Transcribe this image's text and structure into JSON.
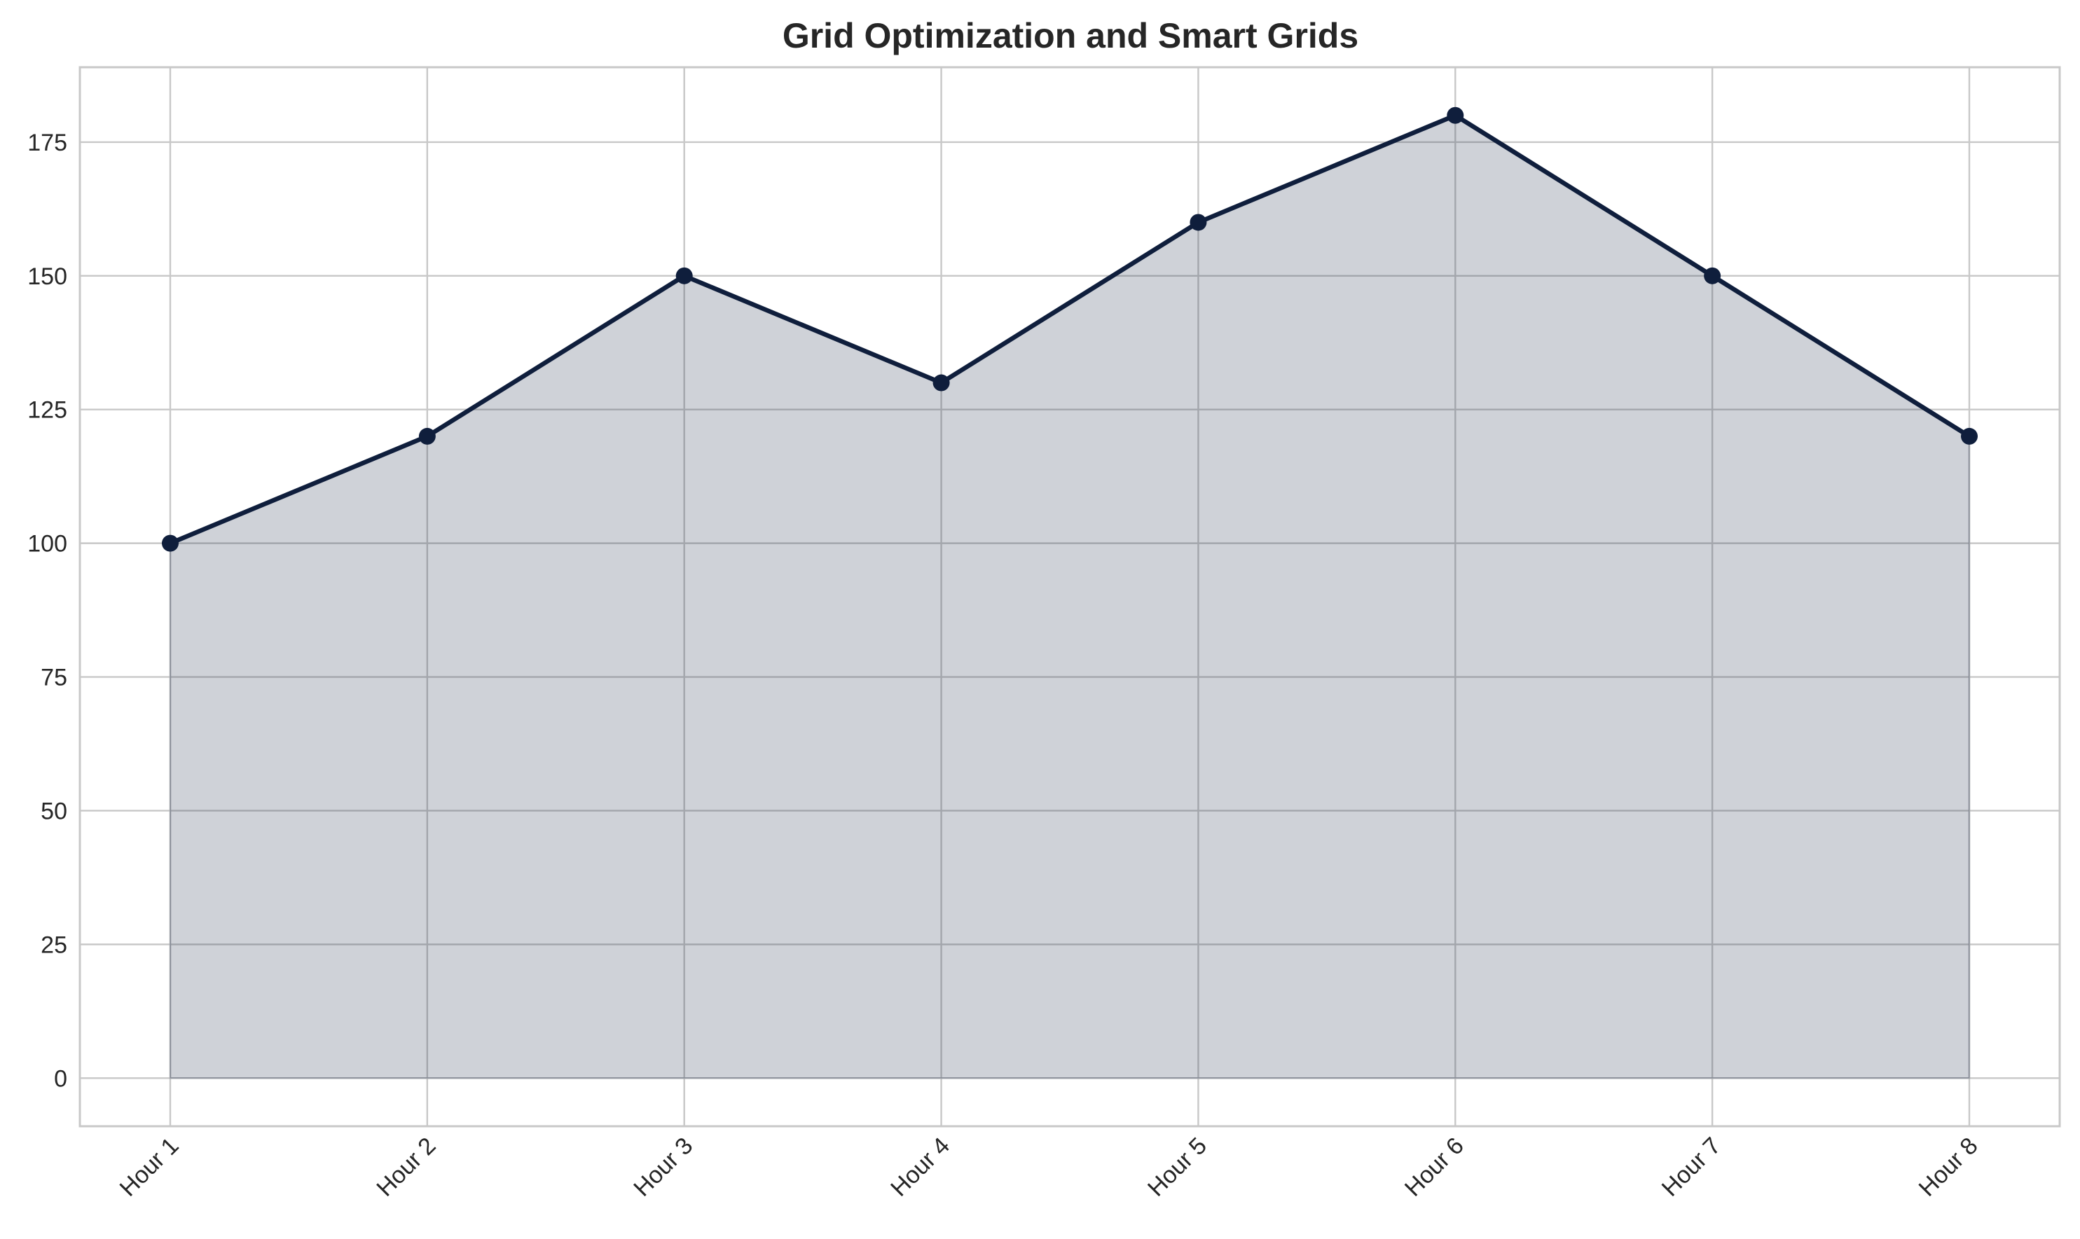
{
  "chart_data": {
    "type": "area",
    "title": "Grid Optimization and Smart Grids",
    "xlabel": "",
    "ylabel": "",
    "categories": [
      "Hour 1",
      "Hour 2",
      "Hour 3",
      "Hour 4",
      "Hour 5",
      "Hour 6",
      "Hour 7",
      "Hour 8"
    ],
    "values": [
      100,
      120,
      150,
      130,
      160,
      180,
      150,
      120
    ],
    "ylim": [
      -9,
      189
    ],
    "yticks": [
      0,
      25,
      50,
      75,
      100,
      125,
      150,
      175
    ],
    "grid": true,
    "legend": "none",
    "colors": {
      "line": "#0f1e3c",
      "fill": "#cdd0d9",
      "grid": "#c8c8c8",
      "spine": "#c8c8c8",
      "text": "#262626"
    }
  }
}
